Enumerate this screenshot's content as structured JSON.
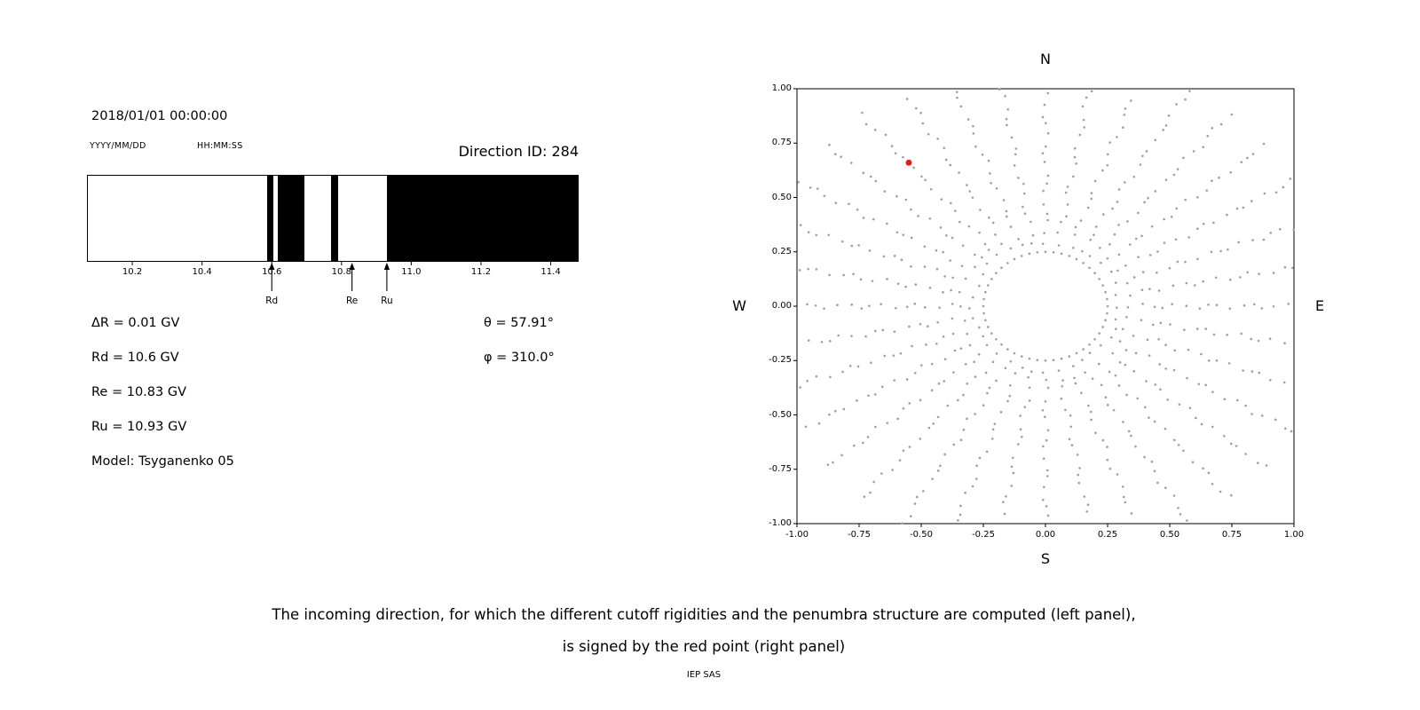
{
  "left_panel": {
    "datetime": "2018/01/01 00:00:00",
    "date_format_label": "YYYY/MM/DD",
    "time_format_label": "HH:MM:SS",
    "direction_id": "Direction ID: 284",
    "left_values": [
      "ΔR = 0.01 GV",
      "Rd = 10.6 GV",
      "Re = 10.83 GV",
      "Ru = 10.93 GV",
      "Model: Tsyganenko 05"
    ],
    "right_values": [
      "θ = 57.91°",
      "φ = 310.0°"
    ]
  },
  "caption": {
    "line1": "The incoming direction, for which the different cutoff rigidities and the penumbra structure are computed (left panel),",
    "line2": "is signed by the red point (right panel)",
    "credit": "IEP SAS"
  },
  "chart_data": [
    {
      "name": "penumbra_structure",
      "type": "bar",
      "description": "Penumbra structure: black bands mark forbidden rigidity intervals in GV",
      "x_range": [
        10.07,
        11.48
      ],
      "ticks": [
        10.2,
        10.4,
        10.6,
        10.8,
        11.0,
        11.2,
        11.4
      ],
      "black_bands": [
        [
          10.585,
          10.602
        ],
        [
          10.615,
          10.69
        ],
        [
          10.768,
          10.787
        ],
        [
          10.928,
          11.48
        ]
      ],
      "markers": [
        {
          "label": "Rd",
          "x": 10.6
        },
        {
          "label": "Re",
          "x": 10.83
        },
        {
          "label": "Ru",
          "x": 10.93
        }
      ]
    },
    {
      "name": "direction_map",
      "type": "scatter",
      "xlim": [
        -1,
        1
      ],
      "ylim": [
        -1,
        1
      ],
      "x_ticks": [
        "-1.00",
        "-0.75",
        "-0.50",
        "-0.25",
        "0.00",
        "0.25",
        "0.50",
        "0.75",
        "1.00"
      ],
      "y_ticks": [
        "1.00",
        "0.75",
        "0.50",
        "0.25",
        "0.00",
        "-0.25",
        "-0.50",
        "-0.75",
        "-1.00"
      ],
      "compass": {
        "top": "N",
        "bottom": "S",
        "left": "W",
        "right": "E"
      },
      "spokes": {
        "count": 36,
        "angle_step_deg": 10,
        "r_start": 0.295,
        "r_end": 1.15,
        "r_step": 0.045
      },
      "inner_ring": {
        "radius": 0.25,
        "points": 48
      },
      "dot_color": "#9e9e9e",
      "red_point": {
        "x": -0.55,
        "y": 0.66,
        "color": "#e02020"
      }
    }
  ]
}
